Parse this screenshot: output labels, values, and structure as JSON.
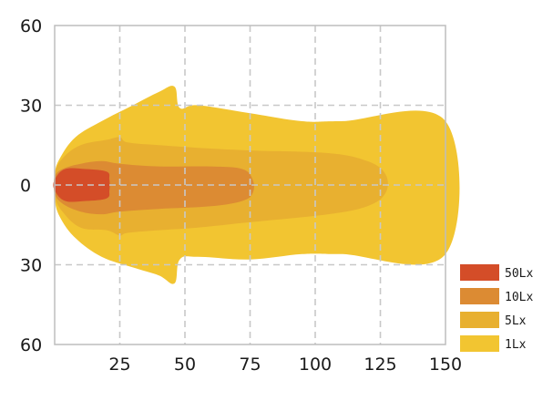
{
  "chart_data": {
    "type": "area",
    "title": "",
    "xlabel": "",
    "ylabel": "",
    "xlim": [
      0,
      150
    ],
    "ylim": [
      -60,
      60
    ],
    "x_ticks": [
      25,
      50,
      75,
      100,
      125,
      150
    ],
    "y_ticks": [
      {
        "value": 60,
        "label": "60"
      },
      {
        "value": 30,
        "label": "30"
      },
      {
        "value": 0,
        "label": "0"
      },
      {
        "value": -30,
        "label": "30"
      },
      {
        "value": -60,
        "label": "60"
      }
    ],
    "grid": "dashed",
    "legend_position": "bottom-right",
    "series": [
      {
        "name": "1Lx",
        "color": "#f2c531",
        "points": [
          [
            0,
            -5
          ],
          [
            2,
            -12
          ],
          [
            8,
            -20
          ],
          [
            18,
            -27
          ],
          [
            30,
            -31
          ],
          [
            40,
            -34
          ],
          [
            46,
            -37
          ],
          [
            48,
            -28
          ],
          [
            55,
            -27
          ],
          [
            75,
            -28
          ],
          [
            95,
            -26
          ],
          [
            110,
            -26
          ],
          [
            150,
            -26
          ],
          [
            150,
            24
          ],
          [
            110,
            24
          ],
          [
            95,
            24
          ],
          [
            75,
            27
          ],
          [
            55,
            30
          ],
          [
            48,
            29
          ],
          [
            46,
            37
          ],
          [
            40,
            35
          ],
          [
            30,
            30
          ],
          [
            18,
            24
          ],
          [
            8,
            18
          ],
          [
            2,
            10
          ],
          [
            0,
            4
          ]
        ]
      },
      {
        "name": "5Lx",
        "color": "#e8b030",
        "points": [
          [
            0,
            -4
          ],
          [
            3,
            -10
          ],
          [
            10,
            -16
          ],
          [
            20,
            -17
          ],
          [
            25,
            -19
          ],
          [
            28,
            -18
          ],
          [
            40,
            -17
          ],
          [
            55,
            -16
          ],
          [
            75,
            -14
          ],
          [
            105,
            -11
          ],
          [
            120,
            -8
          ],
          [
            127,
            -3
          ],
          [
            127,
            4
          ],
          [
            120,
            9
          ],
          [
            105,
            12
          ],
          [
            75,
            13
          ],
          [
            55,
            14
          ],
          [
            40,
            15
          ],
          [
            28,
            16
          ],
          [
            25,
            18
          ],
          [
            20,
            17
          ],
          [
            10,
            15
          ],
          [
            3,
            10
          ],
          [
            0,
            4
          ]
        ]
      },
      {
        "name": "10Lx",
        "color": "#dc8b33",
        "points": [
          [
            0,
            -3
          ],
          [
            3,
            -7
          ],
          [
            10,
            -10
          ],
          [
            18,
            -11
          ],
          [
            25,
            -10
          ],
          [
            40,
            -9
          ],
          [
            60,
            -8
          ],
          [
            72,
            -6
          ],
          [
            76,
            -3
          ],
          [
            76,
            2
          ],
          [
            72,
            6
          ],
          [
            60,
            7
          ],
          [
            40,
            7
          ],
          [
            25,
            8
          ],
          [
            18,
            9
          ],
          [
            10,
            8
          ],
          [
            3,
            6
          ],
          [
            0,
            3
          ]
        ]
      },
      {
        "name": "50Lx",
        "color": "#d44d28",
        "points": [
          [
            0,
            -2
          ],
          [
            4,
            -6
          ],
          [
            12,
            -6
          ],
          [
            20,
            -5
          ],
          [
            21,
            -2
          ],
          [
            21,
            2
          ],
          [
            20,
            5
          ],
          [
            12,
            6
          ],
          [
            4,
            6
          ],
          [
            0,
            2
          ]
        ]
      }
    ]
  }
}
